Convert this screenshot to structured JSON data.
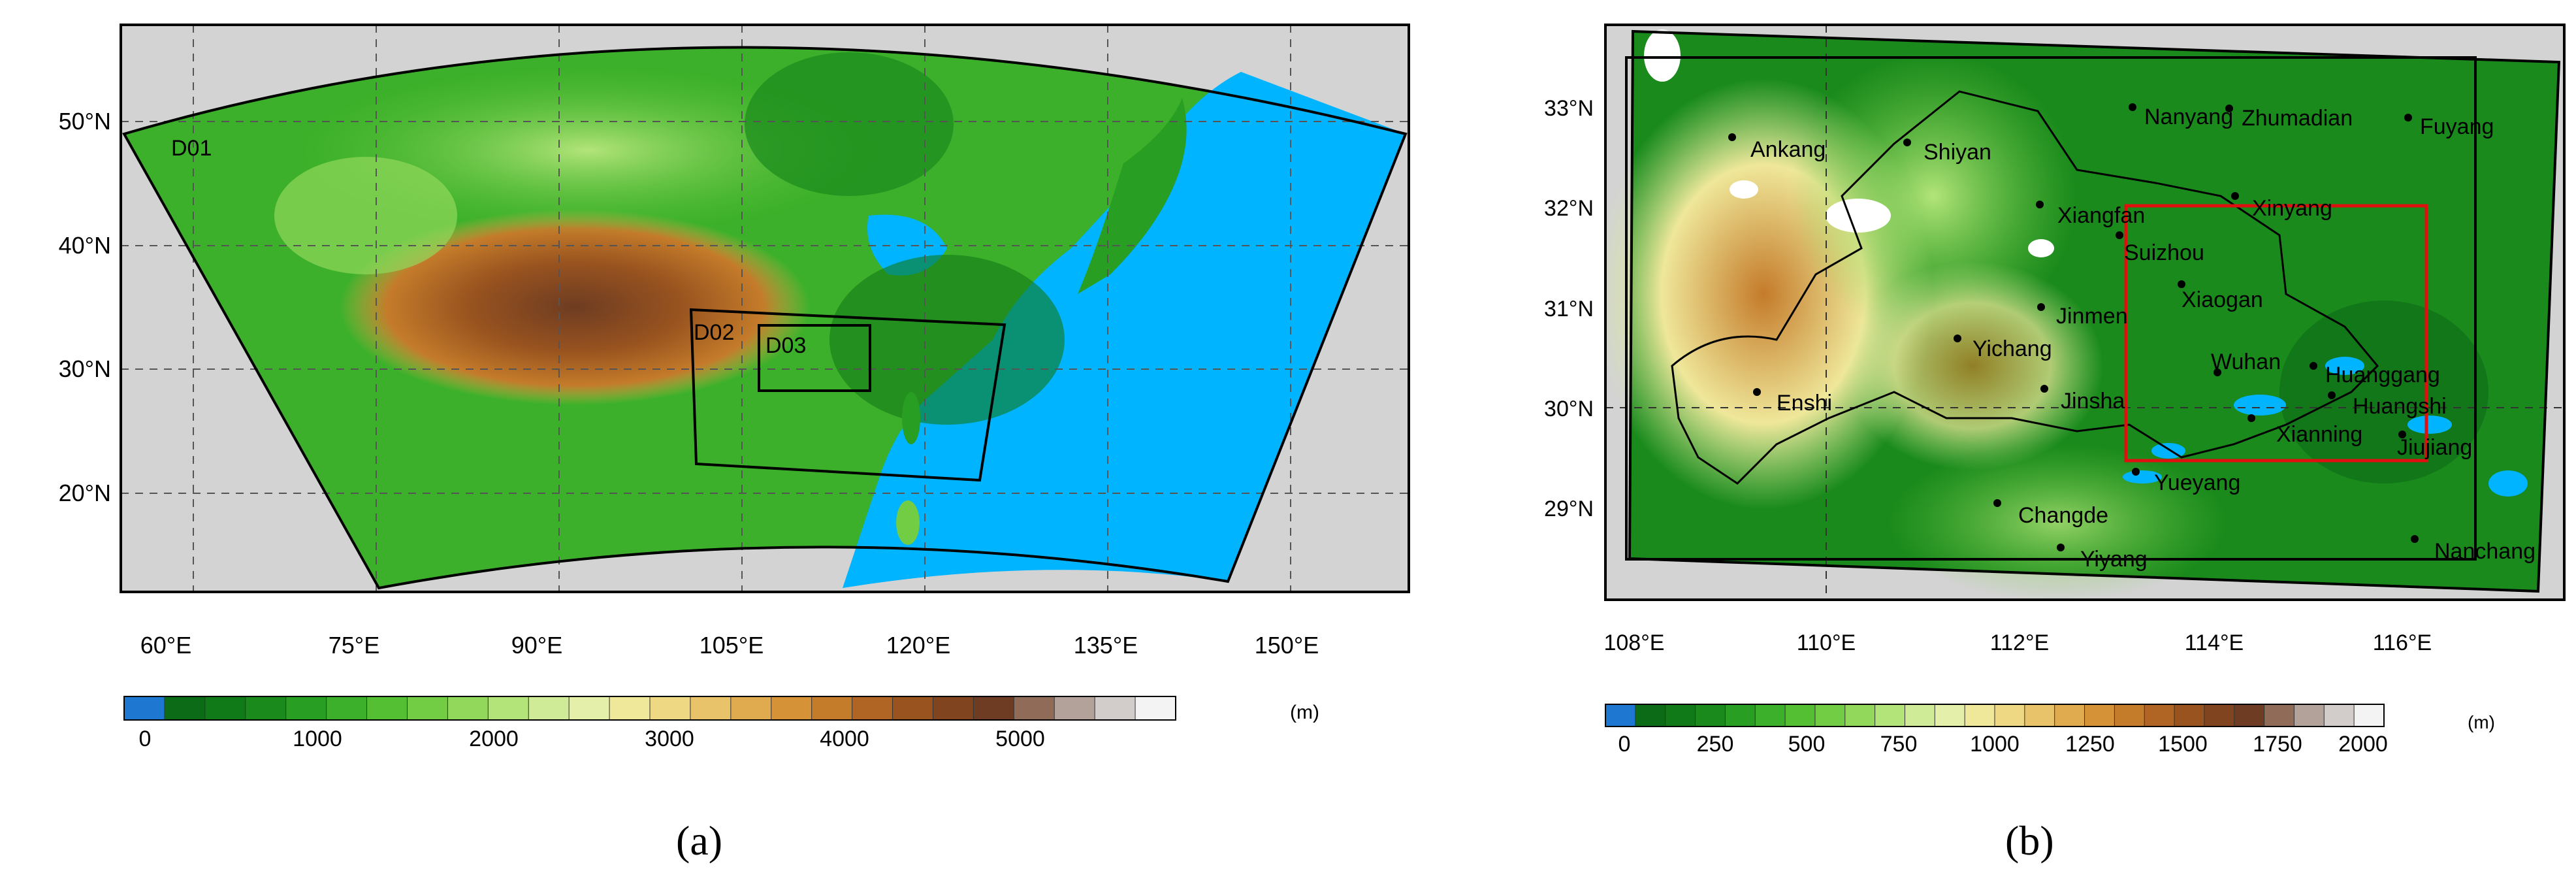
{
  "panels": [
    {
      "id": "a",
      "caption": "(a)",
      "lat_ticks": [
        "50°N",
        "40°N",
        "30°N",
        "20°N"
      ],
      "lon_ticks": [
        "60°E",
        "75°E",
        "90°E",
        "105°E",
        "120°E",
        "135°E",
        "150°E"
      ],
      "domains": [
        "D01",
        "D02",
        "D03"
      ],
      "colorbar": {
        "unit": "(m)",
        "tick_labels": [
          "0",
          "1000",
          "2000",
          "3000",
          "4000",
          "5000"
        ],
        "palette": [
          "#1e78d2",
          "#0b6b16",
          "#117a18",
          "#1a8a1c",
          "#289e22",
          "#3cb02a",
          "#55bf33",
          "#72cc44",
          "#92d85b",
          "#b3e47a",
          "#cfeb98",
          "#e4efaa",
          "#efe79a",
          "#eed884",
          "#e8c36a",
          "#dfab4e",
          "#d59236",
          "#c47b2a",
          "#b06524",
          "#98531f",
          "#80441e",
          "#6e3c22",
          "#8f6b58",
          "#b2a29a",
          "#d2ccca",
          "#f3f3f3"
        ]
      }
    },
    {
      "id": "b",
      "caption": "(b)",
      "lat_ticks": [
        "33°N",
        "32°N",
        "31°N",
        "30°N",
        "29°N"
      ],
      "lon_ticks": [
        "108°E",
        "110°E",
        "112°E",
        "114°E",
        "116°E"
      ],
      "cities": [
        "Nanyang",
        "Zhumadian",
        "Fuyang",
        "Ankang",
        "Shiyan",
        "Xiangfan",
        "Xinyang",
        "Suizhou",
        "Xiaogan",
        "Jinmen",
        "Yichang",
        "Wuhan",
        "Huanggang",
        "Huangshi",
        "Enshi",
        "Jinsha",
        "Xianning",
        "Jiujiang",
        "Yueyang",
        "Changde",
        "Yiyang",
        "Nanchang"
      ],
      "colorbar": {
        "unit": "(m)",
        "tick_labels": [
          "0",
          "250",
          "500",
          "750",
          "1000",
          "1250",
          "1500",
          "1750",
          "2000"
        ],
        "palette": [
          "#1e78d2",
          "#0b6b16",
          "#117a18",
          "#1a8a1c",
          "#289e22",
          "#3cb02a",
          "#55bf33",
          "#72cc44",
          "#92d85b",
          "#b3e47a",
          "#cfeb98",
          "#e4efaa",
          "#efe79a",
          "#eed884",
          "#e8c36a",
          "#dfab4e",
          "#d59236",
          "#c47b2a",
          "#b06524",
          "#98531f",
          "#80441e",
          "#6e3c22",
          "#8f6b58",
          "#b2a29a",
          "#d2ccca",
          "#f3f3f3"
        ]
      }
    }
  ]
}
